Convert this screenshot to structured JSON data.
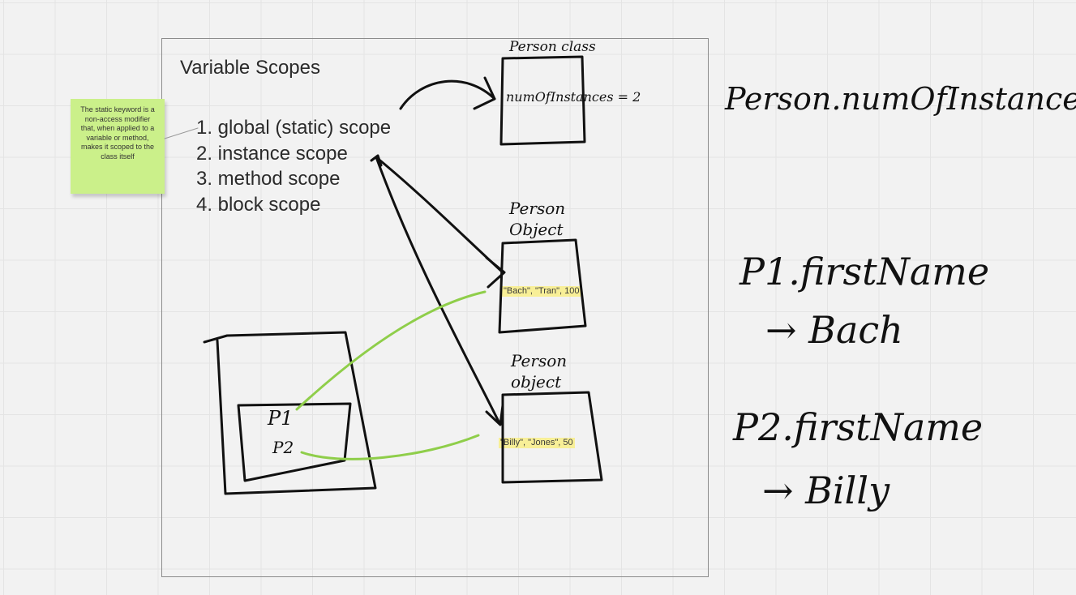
{
  "frame": {
    "title": "Variable Scopes"
  },
  "scopes": [
    {
      "label": "1. global (static) scope"
    },
    {
      "label": "2. instance scope"
    },
    {
      "label": "3. method scope"
    },
    {
      "label": "4. block scope"
    }
  ],
  "sticky_note": {
    "text": "The static keyword is a non-access modifier that, when applied to a variable or method, makes it scoped to the class itself",
    "color": "#cbf08a"
  },
  "handwriting": {
    "person_class_label": "Person class",
    "static_field": "numOfInstances = 2",
    "person_object_label_1": "Person Object",
    "person_object_label_2": "Person object",
    "stack_p1": "P1",
    "stack_p2": "P2",
    "note_static_access": "Person.numOfInstances",
    "note_p1_access": "P1.firstName",
    "note_p1_result": "→ Bach",
    "note_p2_access": "P2.firstName",
    "note_p2_result": "→ Billy"
  },
  "highlights": {
    "object1_values": "\"Bach\", \"Tran\", 100",
    "object2_values": "\"Billy\", \"Jones\", 50"
  },
  "colors": {
    "ink": "#111111",
    "green_connector": "#8fce4a",
    "highlight": "#f8ec7a"
  }
}
